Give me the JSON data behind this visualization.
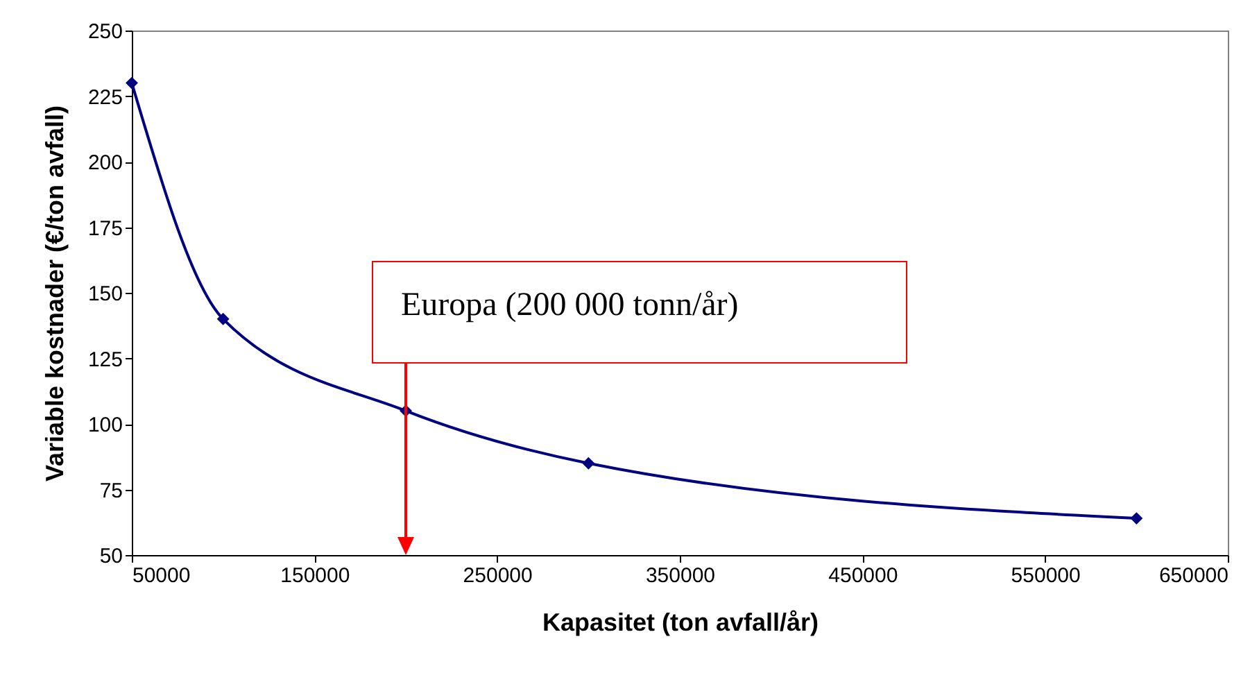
{
  "chart_data": {
    "type": "line",
    "xlabel": "Kapasitet (ton avfall/år)",
    "ylabel": "Variable kostnader (€/ton avfall)",
    "x": [
      50000,
      100000,
      200000,
      300000,
      600000
    ],
    "series": [
      {
        "color": "#000080",
        "values": [
          230,
          140,
          105,
          85,
          64
        ]
      }
    ],
    "xlim": [
      50000,
      650000
    ],
    "xticks": [
      50000,
      150000,
      250000,
      350000,
      450000,
      550000,
      650000
    ],
    "ylim": [
      50,
      250
    ],
    "yticks": [
      50,
      75,
      100,
      125,
      150,
      175,
      200,
      225,
      250
    ],
    "grid": false,
    "marker": "diamond",
    "line_style": "solid",
    "ref_lines": [
      {
        "axis": "x",
        "value": 200000,
        "label": "Europa (200 000 tonn/år)",
        "color": "#ff0000"
      }
    ]
  }
}
